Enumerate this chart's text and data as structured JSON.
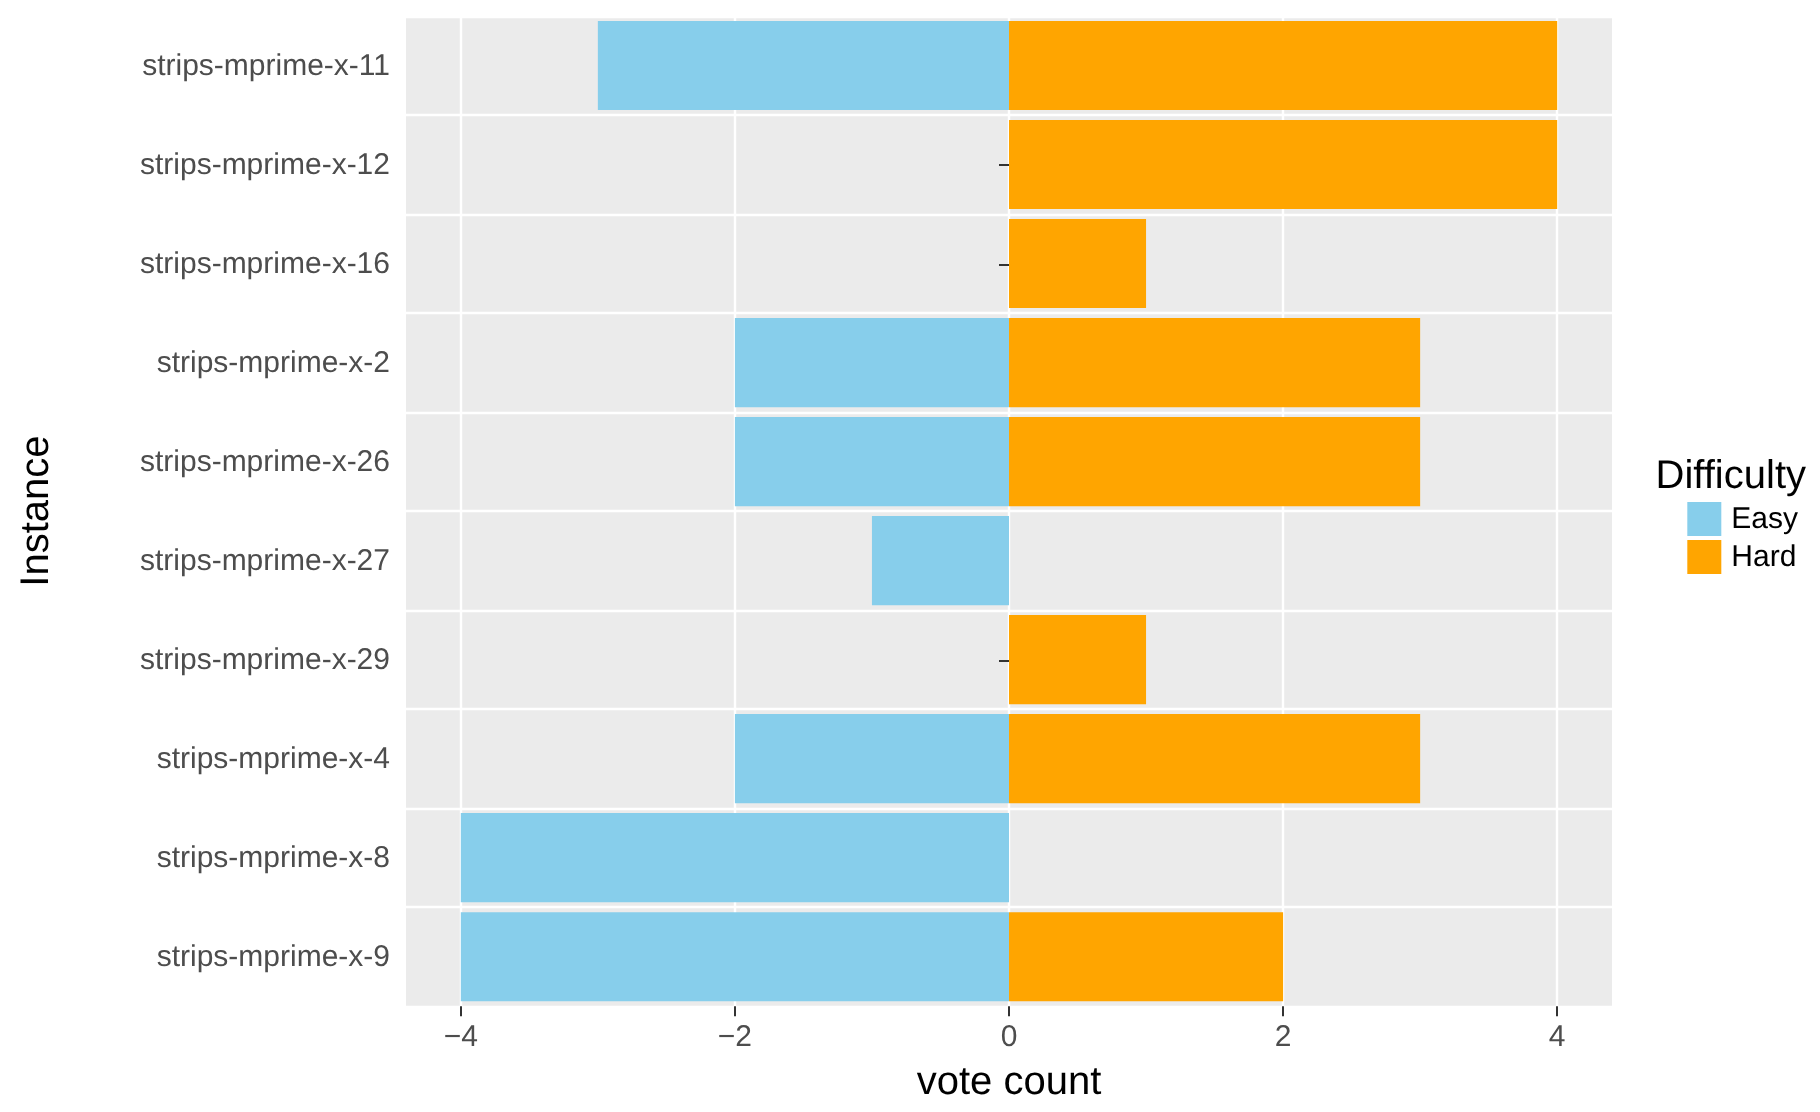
{
  "chart_data": {
    "type": "bar",
    "orientation": "horizontal",
    "stacked": true,
    "xlabel": "vote count",
    "ylabel": "Instance",
    "legend_title": "Difficulty",
    "categories": [
      "strips-mprime-x-11",
      "strips-mprime-x-12",
      "strips-mprime-x-16",
      "strips-mprime-x-2",
      "strips-mprime-x-26",
      "strips-mprime-x-27",
      "strips-mprime-x-29",
      "strips-mprime-x-4",
      "strips-mprime-x-8",
      "strips-mprime-x-9"
    ],
    "series": [
      {
        "name": "Easy",
        "color": "#87ceeb",
        "values": [
          -3,
          null,
          null,
          -2,
          -2,
          -1,
          null,
          -2,
          -4,
          -4
        ]
      },
      {
        "name": "Hard",
        "color": "#ffa500",
        "values": [
          4,
          4,
          1,
          3,
          3,
          null,
          1,
          3,
          null,
          2
        ]
      }
    ],
    "xlim": [
      -4.4,
      4.4
    ],
    "xticks": [
      -4,
      -2,
      0,
      2,
      4
    ],
    "grid": true,
    "legend": "right"
  }
}
